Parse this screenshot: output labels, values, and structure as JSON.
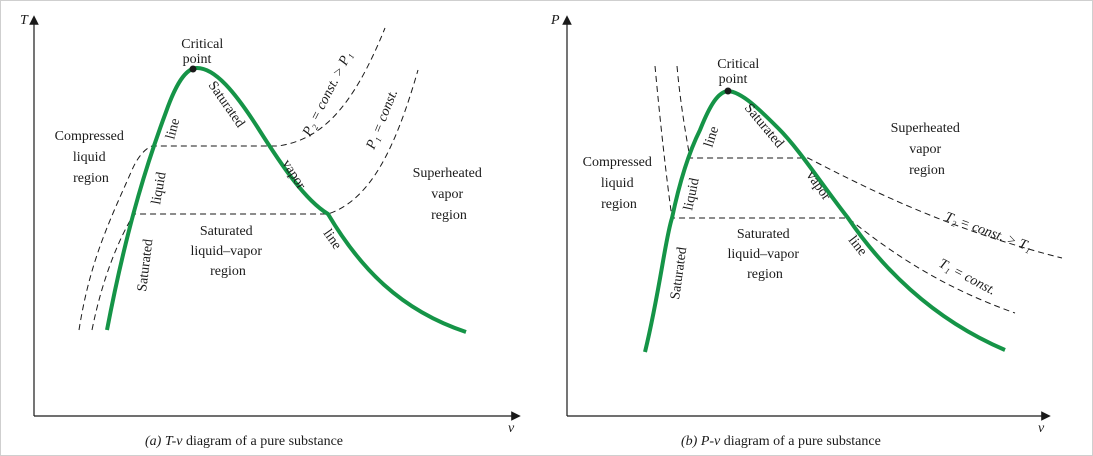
{
  "diagram_a": {
    "axis_y": "T",
    "axis_x": "v",
    "critical_point": [
      "Critical",
      "point"
    ],
    "compressed_liquid": [
      "Compressed",
      "liquid",
      "region"
    ],
    "superheated_vapor": [
      "Superheated",
      "vapor",
      "region"
    ],
    "sat_liquid_vapor": [
      "Saturated",
      "liquid–vapor",
      "region"
    ],
    "sat_liquid_line": [
      "Saturated",
      "liquid",
      "line"
    ],
    "sat_vapor_line": [
      "Saturated",
      "vapor",
      "line"
    ],
    "isobar_high": "P₂ = const. > P₁",
    "isobar_low": "P₁ = const.",
    "caption_prefix": "(a)",
    "caption_symbol": "T-v",
    "caption_text": "diagram of a pure substance"
  },
  "diagram_b": {
    "axis_y": "P",
    "axis_x": "v",
    "critical_point": [
      "Critical",
      "point"
    ],
    "compressed_liquid": [
      "Compressed",
      "liquid",
      "region"
    ],
    "superheated_vapor": [
      "Superheated",
      "vapor",
      "region"
    ],
    "sat_liquid_vapor": [
      "Saturated",
      "liquid–vapor",
      "region"
    ],
    "sat_liquid_line": [
      "Saturated",
      "liquid",
      "line"
    ],
    "sat_vapor_line": [
      "Saturated",
      "vapor",
      "line"
    ],
    "isotherm_high": "T₂ = const. > T₁",
    "isotherm_low": "T₁ = const.",
    "caption_prefix": "(b)",
    "caption_symbol": "P-v",
    "caption_text": "diagram of a pure substance"
  },
  "colors": {
    "dome": "#159447",
    "ink": "#1a1a1a"
  }
}
